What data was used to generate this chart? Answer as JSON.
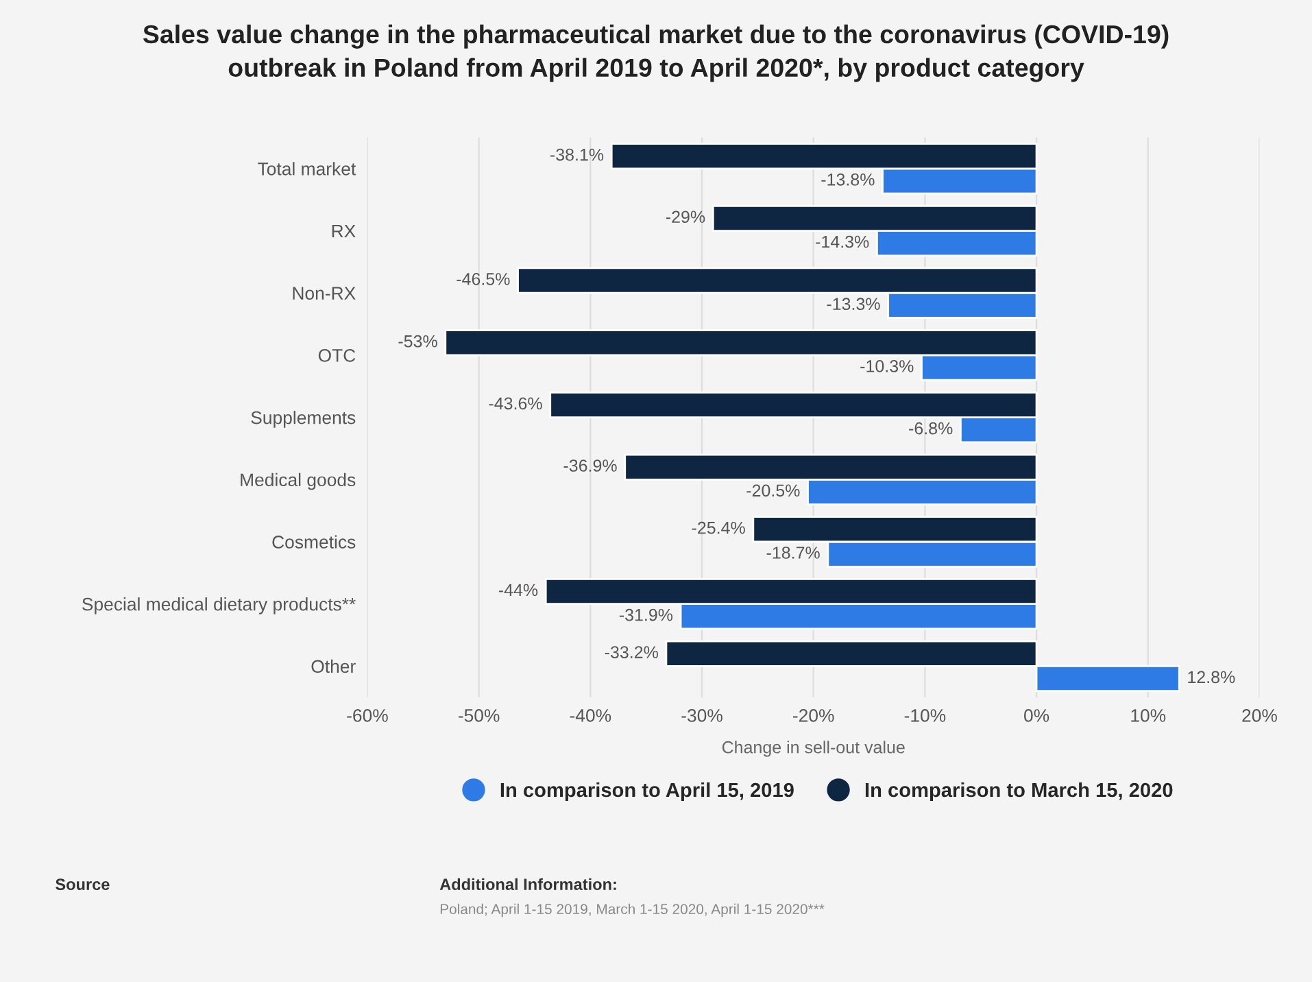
{
  "chart_data": {
    "type": "bar",
    "orientation": "horizontal",
    "title": "Sales value change in the pharmaceutical market due to the coronavirus (COVID-19)\noutbreak in Poland from April 2019 to April 2020*, by product category",
    "xlabel": "Change in sell-out value",
    "categories": [
      "Total market",
      "RX",
      "Non-RX",
      "OTC",
      "Supplements",
      "Medical goods",
      "Cosmetics",
      "Special medical dietary products**",
      "Other"
    ],
    "series": [
      {
        "name": "In comparison to April 15, 2019",
        "color": "#2f7be6",
        "values": [
          -13.8,
          -14.3,
          -13.3,
          -10.3,
          -6.8,
          -20.5,
          -18.7,
          -31.9,
          12.8
        ],
        "value_labels": [
          "-13.8%",
          "-14.3%",
          "-13.3%",
          "-10.3%",
          "-6.8%",
          "-20.5%",
          "-18.7%",
          "-31.9%",
          "12.8%"
        ]
      },
      {
        "name": "In comparison to March 15, 2020",
        "color": "#0f2642",
        "values": [
          -38.1,
          -29,
          -46.5,
          -53,
          -43.6,
          -36.9,
          -25.4,
          -44,
          -33.2
        ],
        "value_labels": [
          "-38.1%",
          "-29%",
          "-46.5%",
          "-53%",
          "-43.6%",
          "-36.9%",
          "-25.4%",
          "-44%",
          "-33.2%"
        ]
      }
    ],
    "xlim": [
      -60,
      20
    ],
    "xticks": [
      {
        "value": -60,
        "label": "-60%"
      },
      {
        "value": -50,
        "label": "-50%"
      },
      {
        "value": -40,
        "label": "-40%"
      },
      {
        "value": -30,
        "label": "-30%"
      },
      {
        "value": -20,
        "label": "-20%"
      },
      {
        "value": -10,
        "label": "-10%"
      },
      {
        "value": 0,
        "label": "0%"
      },
      {
        "value": 10,
        "label": "10%"
      },
      {
        "value": 20,
        "label": "20%"
      }
    ],
    "grid": "x",
    "legend": "bottom",
    "marker": "circle",
    "annotations": [
      "Source",
      "Additional Information:",
      "Poland; April 1-15 2019, March 1-15 2020, April 1-15 2020***"
    ]
  }
}
